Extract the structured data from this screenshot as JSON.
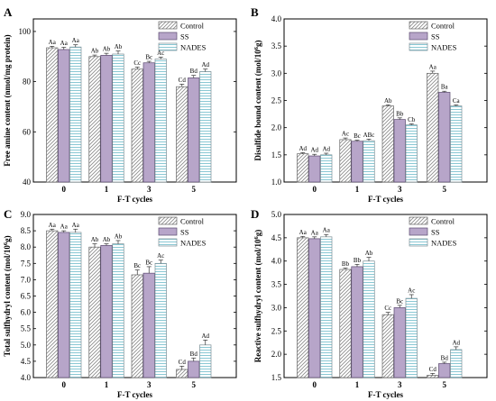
{
  "patterns": {
    "Control": {
      "fill": "#ffffff",
      "stroke": "#8a8a8a",
      "kind": "diagonal"
    },
    "SS": {
      "fill": "#b7a5c9",
      "stroke": "#6e5b86",
      "kind": "solid"
    },
    "NADES": {
      "fill": "#ffffff",
      "stroke": "#7dc2cf",
      "kind": "horizontal"
    }
  },
  "chart_data": [
    {
      "panel": "A",
      "type": "bar",
      "xlabel": "F-T cycles",
      "ylabel": "Free amine content (nmol/mg protein)",
      "ylim": [
        40,
        105
      ],
      "yticks": [
        40,
        60,
        80,
        100
      ],
      "categories": [
        "0",
        "1",
        "3",
        "5"
      ],
      "legend": "top-right",
      "series": [
        {
          "name": "Control",
          "values": [
            93.5,
            90.0,
            85.0,
            78.0
          ],
          "errors": [
            0.6,
            0.6,
            0.8,
            1.0
          ],
          "labels": [
            "Aa",
            "Ab",
            "Cc",
            "Cd"
          ]
        },
        {
          "name": "SS",
          "values": [
            92.8,
            90.5,
            87.5,
            81.5
          ],
          "errors": [
            0.9,
            0.8,
            0.6,
            1.0
          ],
          "labels": [
            "Aa",
            "Ab",
            "Bc",
            "Bd"
          ]
        },
        {
          "name": "NADES",
          "values": [
            93.8,
            91.0,
            89.0,
            84.0
          ],
          "errors": [
            0.9,
            1.2,
            0.8,
            1.0
          ],
          "labels": [
            "Aa",
            "Ab",
            "Ac",
            "Ad"
          ]
        }
      ]
    },
    {
      "panel": "B",
      "type": "bar",
      "xlabel": "F-T cycles",
      "ylabel": "Disulfide bound content (mol/10^6g)",
      "ylim": [
        1.0,
        4.0
      ],
      "yticks": [
        "1.0",
        "1.5",
        "2.0",
        "2.5",
        "3.0",
        "3.5",
        "4.0"
      ],
      "categories": [
        "0",
        "1",
        "3",
        "5"
      ],
      "legend": "top-right",
      "series": [
        {
          "name": "Control",
          "values": [
            1.52,
            1.78,
            2.4,
            3.0
          ],
          "errors": [
            0.02,
            0.03,
            0.02,
            0.04
          ],
          "labels": [
            "Ad",
            "Ac",
            "Ab",
            "Aa"
          ]
        },
        {
          "name": "SS",
          "values": [
            1.48,
            1.75,
            2.15,
            2.65
          ],
          "errors": [
            0.03,
            0.02,
            0.03,
            0.02
          ],
          "labels": [
            "Ad",
            "Bc",
            "Bb",
            "Ba"
          ]
        },
        {
          "name": "NADES",
          "values": [
            1.5,
            1.76,
            2.05,
            2.4
          ],
          "errors": [
            0.03,
            0.03,
            0.02,
            0.02
          ],
          "labels": [
            "Ad",
            "ABc",
            "Cb",
            "Ca"
          ]
        }
      ]
    },
    {
      "panel": "C",
      "type": "bar",
      "xlabel": "F-T cycles",
      "ylabel": "Total sulfhydryl content (mol/10^6g)",
      "ylim": [
        4.0,
        9.0
      ],
      "yticks": [
        "4.0",
        "4.5",
        "5.0",
        "5.5",
        "6.0",
        "6.5",
        "7.0",
        "7.5",
        "8.0",
        "8.5",
        "9.0"
      ],
      "categories": [
        "0",
        "1",
        "3",
        "5"
      ],
      "legend": "top-right",
      "series": [
        {
          "name": "Control",
          "values": [
            8.5,
            8.0,
            7.15,
            4.25
          ],
          "errors": [
            0.05,
            0.1,
            0.15,
            0.1
          ],
          "labels": [
            "Aa",
            "Ab",
            "Bc",
            "Cd"
          ]
        },
        {
          "name": "SS",
          "values": [
            8.45,
            8.05,
            7.2,
            4.5
          ],
          "errors": [
            0.05,
            0.05,
            0.2,
            0.1
          ],
          "labels": [
            "Aa",
            "Ab",
            "Bc",
            "Bd"
          ]
        },
        {
          "name": "NADES",
          "values": [
            8.45,
            8.1,
            7.5,
            5.0
          ],
          "errors": [
            0.1,
            0.1,
            0.1,
            0.15
          ],
          "labels": [
            "Aa",
            "Ab",
            "Ac",
            "Ad"
          ]
        }
      ]
    },
    {
      "panel": "D",
      "type": "bar",
      "xlabel": "F-T cycles",
      "ylabel": "Reactive sulfhydryl content (mol/10^6g)",
      "ylim": [
        1.5,
        5.0
      ],
      "yticks": [
        "1.5",
        "2.0",
        "2.5",
        "3.0",
        "3.5",
        "4.0",
        "4.5",
        "5.0"
      ],
      "categories": [
        "0",
        "1",
        "3",
        "5"
      ],
      "legend": "top-right",
      "series": [
        {
          "name": "Control",
          "values": [
            4.5,
            3.82,
            2.85,
            1.55
          ],
          "errors": [
            0.03,
            0.03,
            0.05,
            0.04
          ],
          "labels": [
            "Aa",
            "Bb",
            "Cc",
            "Cd"
          ]
        },
        {
          "name": "SS",
          "values": [
            4.48,
            3.88,
            3.0,
            1.8
          ],
          "errors": [
            0.04,
            0.05,
            0.05,
            0.03
          ],
          "labels": [
            "Aa",
            "Bb",
            "Bc",
            "Bd"
          ]
        },
        {
          "name": "NADES",
          "values": [
            4.52,
            4.0,
            3.2,
            2.1
          ],
          "errors": [
            0.05,
            0.08,
            0.08,
            0.06
          ],
          "labels": [
            "Aa",
            "Ab",
            "Ac",
            "Ad"
          ]
        }
      ]
    }
  ]
}
